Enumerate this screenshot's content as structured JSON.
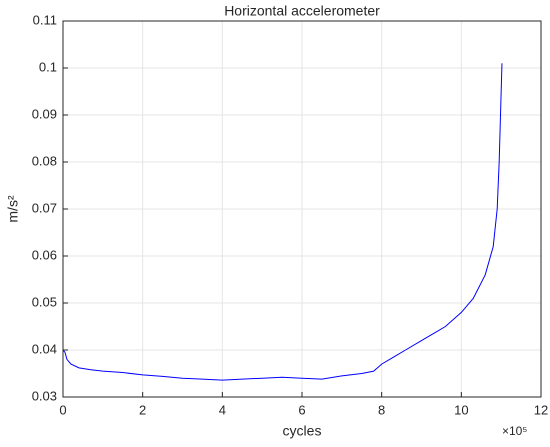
{
  "chart_data": {
    "type": "line",
    "title": "Horizontal accelerometer",
    "xlabel": "cycles",
    "ylabel": "m/s²",
    "x_exponent_label": "×10⁵",
    "x": [
      0,
      0.05,
      0.1,
      0.2,
      0.4,
      0.7,
      1,
      1.5,
      2,
      2.5,
      3,
      3.5,
      4,
      4.5,
      5,
      5.5,
      6,
      6.5,
      7,
      7.5,
      7.8,
      8,
      8.3,
      8.6,
      9,
      9.3,
      9.6,
      10,
      10.3,
      10.6,
      10.8,
      10.9,
      10.95,
      11,
      11.02
    ],
    "series": [
      {
        "name": "Horizontal accelerometer",
        "color": "#0000ff",
        "values": [
          0.04,
          0.0395,
          0.038,
          0.037,
          0.0362,
          0.0358,
          0.0355,
          0.0352,
          0.0347,
          0.0344,
          0.034,
          0.0338,
          0.0336,
          0.0338,
          0.034,
          0.0342,
          0.034,
          0.0338,
          0.0345,
          0.035,
          0.0355,
          0.037,
          0.0385,
          0.04,
          0.042,
          0.0435,
          0.045,
          0.048,
          0.051,
          0.056,
          0.062,
          0.07,
          0.08,
          0.095,
          0.101
        ]
      }
    ],
    "xlim": [
      0,
      12
    ],
    "xticks": [
      0,
      2,
      4,
      6,
      8,
      10,
      12
    ],
    "ylim": [
      0.03,
      0.11
    ],
    "yticks": [
      0.03,
      0.04,
      0.05,
      0.06,
      0.07,
      0.08,
      0.09,
      0.1,
      0.11
    ],
    "grid": true
  }
}
